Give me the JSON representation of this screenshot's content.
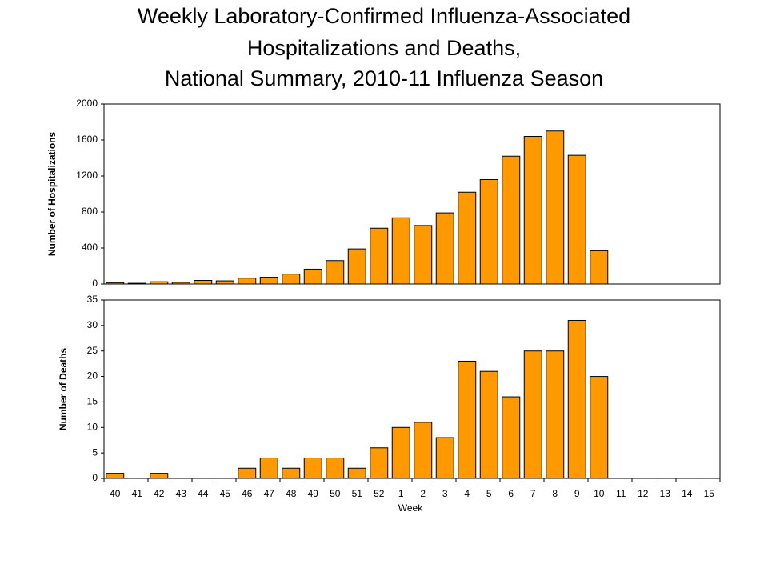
{
  "title": [
    "Weekly Laboratory-Confirmed Influenza-Associated",
    "Hospitalizations and Deaths,",
    "National Summary, 2010-11 Influenza Season"
  ],
  "chart_data": [
    {
      "type": "bar",
      "ylabel": "Number of Hospitalizations",
      "color": "#ff9900",
      "values": [
        15,
        8,
        25,
        18,
        40,
        35,
        65,
        75,
        110,
        165,
        260,
        390,
        620,
        735,
        650,
        790,
        1020,
        1160,
        1420,
        1640,
        1700,
        1430,
        370,
        null,
        null,
        null,
        null,
        null
      ],
      "ylim": [
        0,
        2000
      ],
      "yticks": [
        0,
        400,
        800,
        1200,
        1600,
        2000
      ]
    },
    {
      "type": "bar",
      "ylabel": "Number of Deaths",
      "xlabel": "Week",
      "color": "#ff9900",
      "categories": [
        "40",
        "41",
        "42",
        "43",
        "44",
        "45",
        "46",
        "47",
        "48",
        "49",
        "50",
        "51",
        "52",
        "1",
        "2",
        "3",
        "4",
        "5",
        "6",
        "7",
        "8",
        "9",
        "10",
        "11",
        "12",
        "13",
        "14",
        "15"
      ],
      "values": [
        1,
        0,
        1,
        0,
        0,
        0,
        2,
        4,
        2,
        4,
        4,
        2,
        6,
        10,
        11,
        8,
        23,
        21,
        16,
        25,
        25,
        31,
        20,
        null,
        null,
        null,
        null,
        null
      ],
      "ylim": [
        0,
        35
      ],
      "yticks": [
        0,
        5,
        10,
        15,
        20,
        25,
        30,
        35
      ]
    }
  ]
}
